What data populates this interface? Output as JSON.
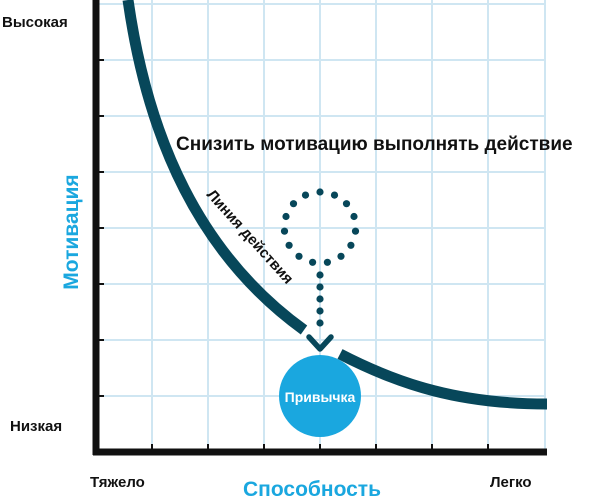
{
  "y_axis": {
    "title": "Мотивация",
    "high_label": "Высокая",
    "low_label": "Низкая"
  },
  "x_axis": {
    "title": "Способность",
    "left_label": "Тяжело",
    "right_label": "Легко"
  },
  "action_line_label": "Линия действия",
  "annotation": "Снизить мотивацию выполнять действие",
  "habit_label": "Привычка",
  "colors": {
    "axis": "#111111",
    "grid": "#cfe6f2",
    "curve": "#07475a",
    "accent": "#1aa7df",
    "dots": "#07475a"
  }
}
